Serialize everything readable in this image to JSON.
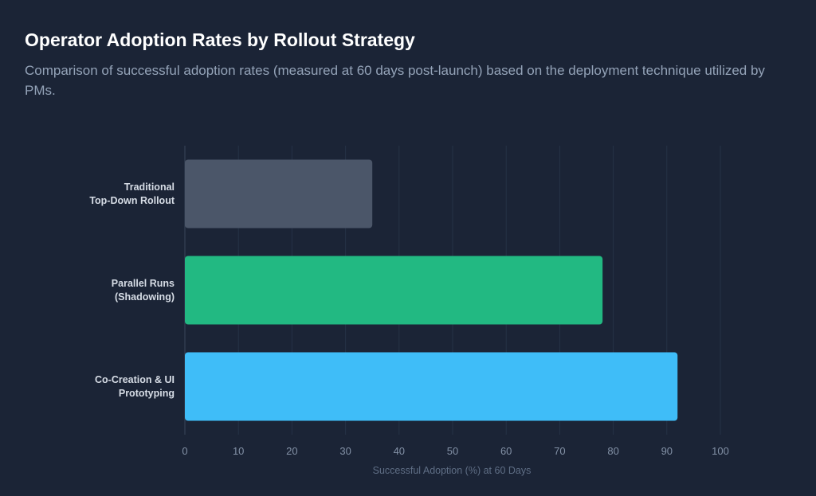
{
  "header": {
    "title": "Operator Adoption Rates by Rollout Strategy",
    "subtitle": "Comparison of successful adoption rates (measured at 60 days post-launch) based on the deployment technique utilized by PMs."
  },
  "chart_data": {
    "type": "bar",
    "orientation": "horizontal",
    "categories": [
      [
        "Traditional",
        "Top-Down Rollout"
      ],
      [
        "Parallel Runs",
        "(Shadowing)"
      ],
      [
        "Co-Creation & UI",
        "Prototyping"
      ]
    ],
    "values": [
      35,
      78,
      92
    ],
    "colors": [
      "#4b5669",
      "#22b982",
      "#3fbdf8"
    ],
    "xlabel": "Successful Adoption (%) at 60 Days",
    "xlim": [
      0,
      100
    ],
    "xticks": [
      0,
      10,
      20,
      30,
      40,
      50,
      60,
      70,
      80,
      90,
      100
    ],
    "grid": true,
    "legend": "none"
  }
}
